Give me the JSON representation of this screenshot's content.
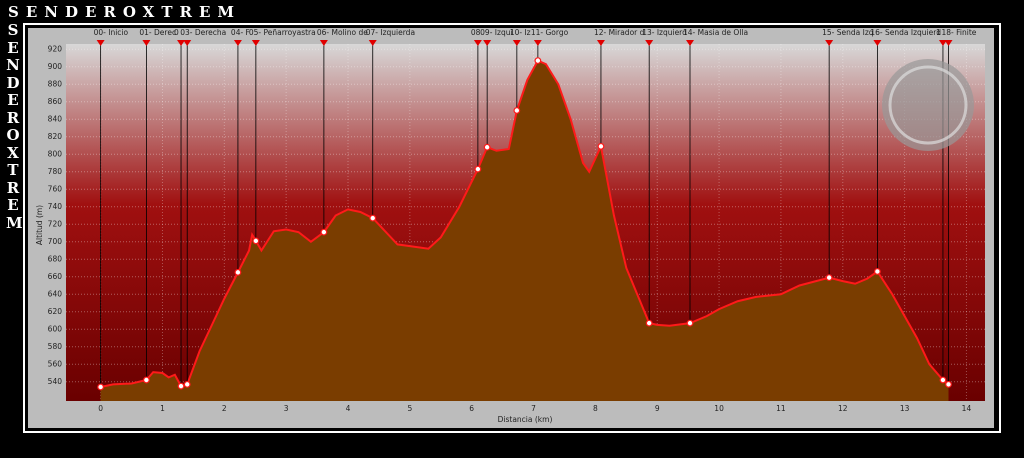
{
  "chart_data": {
    "type": "area",
    "brand": "SENDEROXTREM",
    "y_label": "Altitud (m)",
    "x_label": "Distancia (km)",
    "line_color": "#ff1a1a",
    "fill_color": "#7a3d00",
    "xlim": [
      -0.56,
      14.3
    ],
    "xticks": [
      0,
      1,
      2,
      3,
      4,
      5,
      6,
      7,
      8,
      9,
      10,
      11,
      12,
      13,
      14
    ],
    "ylim": [
      518,
      926
    ],
    "yticks": [
      540,
      560,
      580,
      600,
      620,
      640,
      660,
      680,
      700,
      720,
      740,
      760,
      780,
      800,
      820,
      840,
      860,
      880,
      900,
      920
    ],
    "grid": true,
    "x": [
      0.0,
      0.2,
      0.5,
      0.74,
      0.85,
      1.0,
      1.1,
      1.2,
      1.3,
      1.4,
      1.6,
      1.8,
      2.0,
      2.22,
      2.4,
      2.45,
      2.51,
      2.6,
      2.8,
      3.0,
      3.2,
      3.4,
      3.61,
      3.8,
      4.0,
      4.2,
      4.4,
      4.6,
      4.8,
      5.0,
      5.3,
      5.5,
      5.8,
      6.1,
      6.25,
      6.4,
      6.6,
      6.73,
      6.9,
      7.07,
      7.2,
      7.4,
      7.6,
      7.8,
      7.9,
      8.09,
      8.3,
      8.5,
      8.87,
      9.0,
      9.2,
      9.53,
      9.8,
      10.0,
      10.3,
      10.6,
      11.0,
      11.3,
      11.78,
      12.0,
      12.2,
      12.4,
      12.56,
      12.8,
      13.0,
      13.2,
      13.4,
      13.62,
      13.71
    ],
    "values": [
      534,
      537,
      538,
      542,
      551,
      550,
      545,
      548,
      535,
      537,
      575,
      605,
      635,
      665,
      690,
      708,
      701,
      690,
      712,
      714,
      711,
      700,
      711,
      730,
      737,
      734,
      727,
      712,
      697,
      695,
      692,
      705,
      740,
      783,
      808,
      804,
      806,
      850,
      885,
      907,
      903,
      880,
      840,
      790,
      780,
      809,
      730,
      670,
      607,
      605,
      604,
      607,
      615,
      623,
      632,
      637,
      640,
      650,
      659,
      655,
      652,
      658,
      666,
      640,
      615,
      590,
      560,
      542,
      537
    ],
    "waypoints": {
      "labels": [
        "00- Inicio",
        "01- Derec",
        "0",
        "03- Derecha",
        "04- F",
        "05- Peñarroyastra",
        "06- Molino de",
        "07- Izquierda",
        "08",
        "09- Izqui",
        "10- Iz",
        "11- Gorgo",
        "12- Mirador d",
        "13- Izquierd",
        "14- Masia de Olla",
        "15- Senda Izq",
        "16- Senda Izquierd",
        "1",
        "18- Finite"
      ],
      "x": [
        0.0,
        0.74,
        1.3,
        1.4,
        2.22,
        2.51,
        3.61,
        4.4,
        6.1,
        6.25,
        6.73,
        7.07,
        8.09,
        8.87,
        9.53,
        11.78,
        12.56,
        13.62,
        13.71
      ],
      "values": [
        534,
        542,
        535,
        537,
        665,
        701,
        711,
        727,
        783,
        808,
        850,
        907,
        809,
        607,
        607,
        659,
        666,
        542,
        537
      ]
    }
  }
}
